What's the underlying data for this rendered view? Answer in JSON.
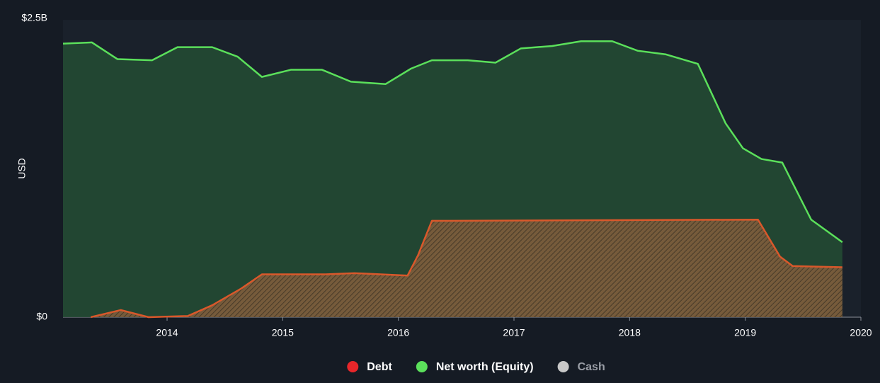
{
  "chart_data": {
    "type": "area",
    "y_label": "USD",
    "xlim": [
      2013.1,
      2020
    ],
    "xticks": [
      2014,
      2015,
      2016,
      2017,
      2018,
      2019,
      2020
    ],
    "ylim": [
      0,
      2.5
    ],
    "yticks": [
      {
        "value": 0,
        "label": "$0"
      },
      {
        "value": 2.5,
        "label": "$2.5B"
      }
    ],
    "grid": false,
    "legend": "bottom",
    "series": [
      {
        "name": "Debt",
        "color": "#e8262a",
        "line_color": "#d9582b",
        "hatched": true,
        "visible": true,
        "x": [
          2013.34,
          2013.6,
          2013.84,
          2014.18,
          2014.39,
          2014.64,
          2014.82,
          2015.37,
          2015.62,
          2016.08,
          2016.17,
          2016.29,
          2019.11,
          2019.3,
          2019.41,
          2019.84
        ],
        "values": [
          0,
          0.06,
          0,
          0.01,
          0.1,
          0.24,
          0.36,
          0.36,
          0.37,
          0.35,
          0.52,
          0.81,
          0.82,
          0.51,
          0.43,
          0.42
        ]
      },
      {
        "name": "Net worth (Equity)",
        "color": "#5be05b",
        "line_color": "#5be05b",
        "hatched": false,
        "visible": true,
        "x": [
          2013.1,
          2013.35,
          2013.57,
          2013.87,
          2014.09,
          2014.39,
          2014.61,
          2014.82,
          2015.07,
          2015.34,
          2015.59,
          2015.89,
          2016.11,
          2016.29,
          2016.6,
          2016.84,
          2017.06,
          2017.33,
          2017.58,
          2017.85,
          2018.07,
          2018.31,
          2018.59,
          2018.83,
          2018.98,
          2019.14,
          2019.32,
          2019.57,
          2019.84
        ],
        "values": [
          2.3,
          2.31,
          2.17,
          2.16,
          2.27,
          2.27,
          2.19,
          2.02,
          2.08,
          2.08,
          1.98,
          1.96,
          2.09,
          2.16,
          2.16,
          2.14,
          2.26,
          2.28,
          2.32,
          2.32,
          2.24,
          2.21,
          2.13,
          1.63,
          1.42,
          1.33,
          1.3,
          0.82,
          0.63
        ]
      },
      {
        "name": "Cash",
        "color": "#c8c8c8",
        "line_color": "#c8c8c8",
        "hatched": false,
        "visible": false,
        "x": [],
        "values": []
      }
    ]
  }
}
